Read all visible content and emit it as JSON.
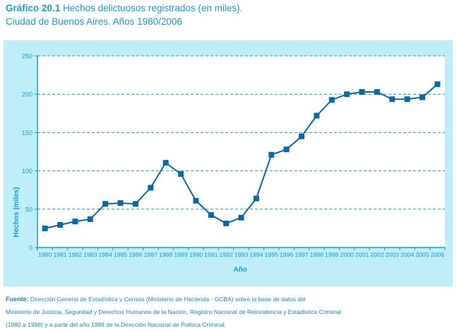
{
  "title": {
    "label": "Gráfico 20.1",
    "text": "Hechos delictuosos registrados (en miles).",
    "subtitle": "Ciudad de Buenos Aires. Años 1980/2006"
  },
  "source": {
    "label": "Fuente:",
    "lines": [
      "Dirección General de Estadística y Censos (Ministerio de Hacienda - GCBA) sobre la base de datos del",
      "Ministerio de Justicia, Seguridad y Derechos Humanos de la Nación, Registro Nacional de Reincidencia y Estadística Criminal",
      "(1980 a 1998) y a partir del año 1999 de la  Dirección Nacional de Política Criminal."
    ]
  },
  "colors": {
    "series": "#0a68a8",
    "axis": "#1a9ad6",
    "grid": "#1a9ad6",
    "panel": "#bdeef9",
    "text": "#1a9ad6"
  },
  "chart_data": {
    "type": "line",
    "title": "Hechos delictuosos registrados (en miles). Ciudad de Buenos Aires. Años 1980/2006",
    "xlabel": "Año",
    "ylabel": "Hechos (miles)",
    "ylim": [
      0,
      250
    ],
    "yticks": [
      0,
      50,
      100,
      150,
      200,
      250
    ],
    "grid": "horizontal-dashed",
    "legend": "none",
    "categories": [
      "1980",
      "1981",
      "1982",
      "1983",
      "1984",
      "1985",
      "1986",
      "1987",
      "1988",
      "1989",
      "1990",
      "1991",
      "1992",
      "1993",
      "1994",
      "1995",
      "1996",
      "1997",
      "1998",
      "1999",
      "2000",
      "2001",
      "2002",
      "2003",
      "2004",
      "2005",
      "2006"
    ],
    "series": [
      {
        "name": "Hechos delictuosos",
        "values": [
          25,
          29.5,
          34,
          37,
          57,
          58,
          57,
          78,
          110.5,
          96,
          61,
          42.5,
          31.5,
          39,
          64,
          121,
          128,
          145,
          172,
          192.5,
          200,
          203,
          203,
          193.5,
          193.5,
          196,
          213
        ]
      }
    ]
  }
}
